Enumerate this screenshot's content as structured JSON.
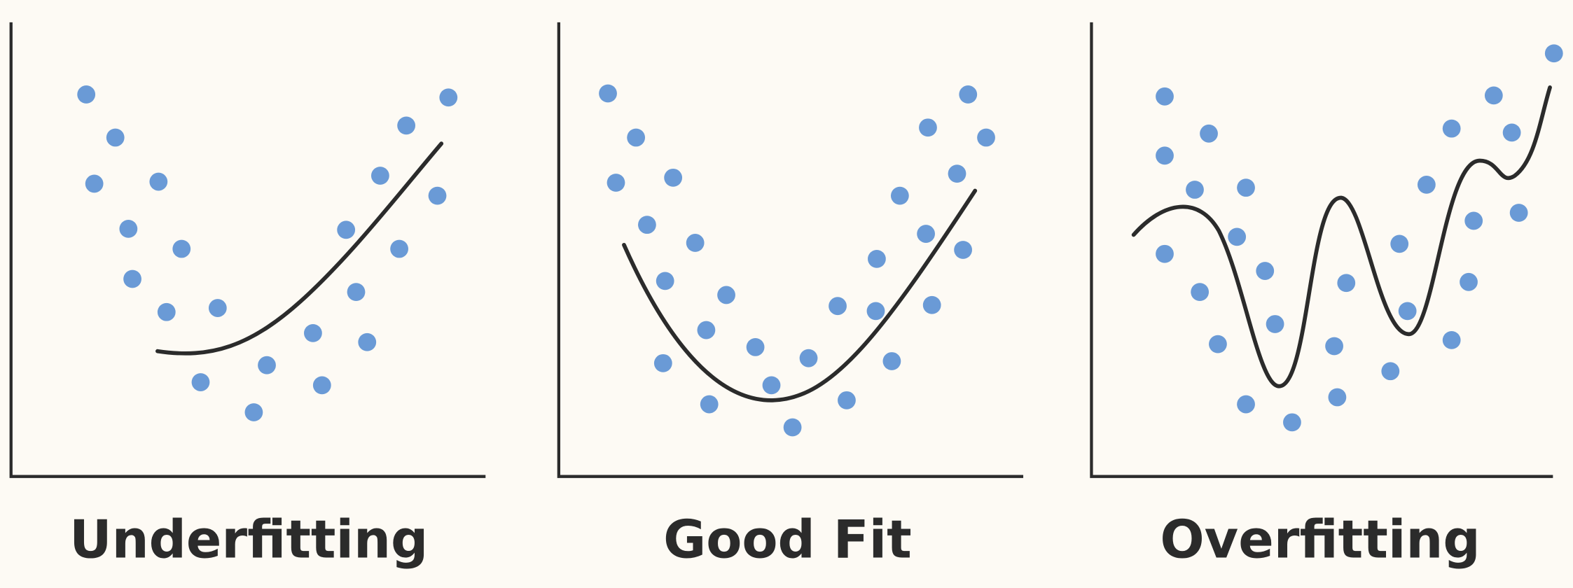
{
  "panels": [
    {
      "title": "Underfitting"
    },
    {
      "title": "Good Fit"
    },
    {
      "title": "Overfitting"
    }
  ]
}
